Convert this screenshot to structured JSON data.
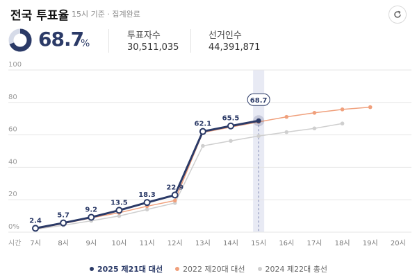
{
  "header": {
    "title": "전국 투표율",
    "subtitle": "15시 기준 · 집계완료"
  },
  "summary": {
    "rate_value": "68.7",
    "rate_unit": "%",
    "voters_label": "투표자수",
    "voters_value": "30,511,035",
    "electors_label": "선거인수",
    "electors_value": "44,391,871"
  },
  "colors": {
    "current": "#2b3a67",
    "prev2022": "#f0a07c",
    "prev2024": "#cfcfcf"
  },
  "chart_data": {
    "type": "line",
    "x": [
      "7시",
      "8시",
      "9시",
      "10시",
      "11시",
      "12시",
      "13시",
      "14시",
      "15시",
      "16시",
      "17시",
      "18시",
      "19시",
      "20시"
    ],
    "x_axis_label": "시간",
    "y_ticks": [
      "0%",
      "20",
      "40",
      "60",
      "80",
      "100"
    ],
    "ylim": [
      0,
      100
    ],
    "highlight": {
      "x": "15시",
      "label": "68.7"
    },
    "series": [
      {
        "name": "2025 제21대 대선",
        "values": [
          2.4,
          5.7,
          9.2,
          13.5,
          18.3,
          22.9,
          62.1,
          65.5,
          68.7,
          null,
          null,
          null,
          null,
          null
        ],
        "labels": [
          "2.4",
          "5.7",
          "9.2",
          "13.5",
          "18.3",
          "22.9",
          "62.1",
          "65.5",
          "",
          "",
          "",
          "",
          "",
          ""
        ]
      },
      {
        "name": "2022 제20대 대선",
        "values": [
          2.1,
          5.3,
          8.8,
          12.0,
          16.0,
          19.5,
          61.5,
          64.8,
          68.0,
          71.1,
          73.6,
          75.7,
          77.1,
          null
        ]
      },
      {
        "name": "2024 제22대 총선",
        "values": [
          1.8,
          4.2,
          7.0,
          10.0,
          14.0,
          18.0,
          53.2,
          56.3,
          59.3,
          61.7,
          64.0,
          67.0,
          null,
          null
        ]
      }
    ],
    "legend_position": "bottom",
    "grid": true
  }
}
